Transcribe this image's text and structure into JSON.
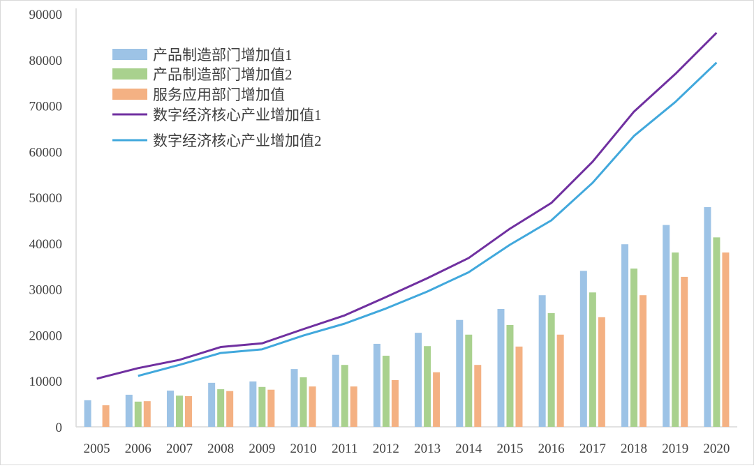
{
  "chart_data": {
    "type": "bar+line",
    "categories": [
      "2005",
      "2006",
      "2007",
      "2008",
      "2009",
      "2010",
      "2011",
      "2012",
      "2013",
      "2014",
      "2015",
      "2016",
      "2017",
      "2018",
      "2019",
      "2020"
    ],
    "ylim": [
      0,
      90000
    ],
    "yticks": [
      "0",
      "10000",
      "20000",
      "30000",
      "40000",
      "50000",
      "60000",
      "70000",
      "80000",
      "90000"
    ],
    "grid": false,
    "legend_position": "top-left",
    "bar_series": [
      {
        "name": "产品制造部门增加值1",
        "color": "#9dc3e6",
        "values": [
          5800,
          7000,
          7900,
          9600,
          9900,
          12600,
          15700,
          18100,
          20500,
          23300,
          25700,
          28700,
          34000,
          39800,
          44000,
          47900
        ]
      },
      {
        "name": "产品制造部门增加值2",
        "color": "#a9d18e",
        "values": [
          null,
          5500,
          6800,
          8200,
          8700,
          10800,
          13500,
          15500,
          17600,
          20100,
          22200,
          24800,
          29300,
          34500,
          38000,
          41300
        ]
      },
      {
        "name": "服务应用部门增加值",
        "color": "#f4b183",
        "values": [
          4700,
          5600,
          6700,
          7800,
          8100,
          8800,
          8800,
          10200,
          11900,
          13500,
          17500,
          20100,
          23900,
          28700,
          32700,
          38000
        ]
      }
    ],
    "line_series": [
      {
        "name": "数字经济核心产业增加值1",
        "color": "#7030a0",
        "values": [
          10500,
          12800,
          14600,
          17400,
          18200,
          21300,
          24300,
          28300,
          32400,
          36800,
          43200,
          48800,
          57800,
          68700,
          76900,
          85900
        ]
      },
      {
        "name": "数字经济核心产业增加值2",
        "color": "#41a8dc",
        "values": [
          null,
          11100,
          13500,
          16100,
          16900,
          19900,
          22500,
          25800,
          29500,
          33700,
          39700,
          45000,
          53200,
          63400,
          70800,
          79400
        ]
      }
    ]
  }
}
